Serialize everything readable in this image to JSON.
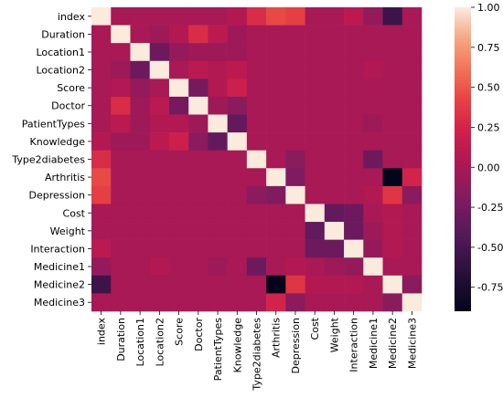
{
  "chart_data": {
    "type": "heatmap",
    "title": "",
    "xlabel": "",
    "ylabel": "",
    "labels": [
      "index",
      "Duration",
      "Location1",
      "Location2",
      "Score",
      "Doctor",
      "PatientTypes",
      "Knowledge",
      "Type2diabetes",
      "Arthritis",
      "Depression",
      "Cost",
      "Weight",
      "Interaction",
      "Medicine1",
      "Medicine2",
      "Medicine3"
    ],
    "colorbar": {
      "min": -0.9,
      "max": 1.0,
      "ticks": [
        "1.00",
        "0.75",
        "0.50",
        "0.25",
        "0.00",
        "-0.25",
        "-0.50",
        "-0.75"
      ],
      "tick_values": [
        1.0,
        0.75,
        0.5,
        0.25,
        0.0,
        -0.25,
        -0.5,
        -0.75
      ]
    },
    "values": [
      [
        1.0,
        0.0,
        0.0,
        0.0,
        0.0,
        0.0,
        0.0,
        0.05,
        0.3,
        0.45,
        0.4,
        0.0,
        0.0,
        0.1,
        -0.1,
        -0.55,
        0.0
      ],
      [
        0.0,
        1.0,
        0.0,
        -0.05,
        0.05,
        0.3,
        0.1,
        -0.05,
        0.0,
        0.0,
        0.0,
        0.0,
        0.0,
        0.0,
        0.0,
        0.0,
        0.0
      ],
      [
        0.0,
        0.0,
        1.0,
        -0.3,
        -0.1,
        -0.05,
        -0.05,
        -0.05,
        0.0,
        0.0,
        0.0,
        0.0,
        0.0,
        0.0,
        0.0,
        0.0,
        0.0
      ],
      [
        0.0,
        -0.05,
        -0.3,
        1.0,
        0.0,
        0.1,
        0.05,
        0.1,
        0.0,
        0.0,
        0.0,
        0.0,
        0.0,
        0.0,
        0.05,
        0.0,
        0.0
      ],
      [
        0.0,
        0.05,
        -0.1,
        0.0,
        1.0,
        -0.25,
        0.05,
        0.2,
        0.0,
        0.0,
        0.0,
        0.0,
        0.0,
        0.0,
        0.0,
        0.0,
        0.0
      ],
      [
        0.0,
        0.3,
        -0.05,
        0.1,
        -0.25,
        1.0,
        -0.05,
        -0.15,
        0.0,
        0.0,
        0.0,
        0.0,
        0.0,
        0.0,
        0.0,
        0.0,
        0.0
      ],
      [
        0.0,
        0.1,
        -0.05,
        0.05,
        0.05,
        -0.05,
        1.0,
        -0.35,
        0.0,
        0.0,
        0.0,
        0.0,
        0.0,
        0.0,
        -0.05,
        0.0,
        0.0
      ],
      [
        0.05,
        -0.05,
        -0.05,
        0.1,
        0.2,
        -0.15,
        -0.35,
        1.0,
        0.0,
        0.0,
        0.0,
        0.0,
        0.0,
        0.0,
        0.0,
        0.0,
        0.0
      ],
      [
        0.3,
        0.0,
        0.0,
        0.0,
        0.0,
        0.0,
        0.0,
        0.0,
        1.0,
        0.0,
        -0.15,
        0.0,
        0.0,
        0.0,
        -0.3,
        0.0,
        0.0
      ],
      [
        0.45,
        0.0,
        0.0,
        0.0,
        0.0,
        0.0,
        0.0,
        0.0,
        0.0,
        1.0,
        -0.2,
        0.0,
        0.0,
        0.0,
        0.0,
        -0.9,
        0.25
      ],
      [
        0.4,
        0.0,
        0.0,
        0.0,
        0.0,
        0.0,
        0.0,
        0.0,
        -0.15,
        -0.2,
        1.0,
        0.0,
        0.0,
        0.0,
        0.05,
        0.35,
        -0.15
      ],
      [
        0.0,
        0.0,
        0.0,
        0.0,
        0.0,
        0.0,
        0.0,
        0.0,
        0.0,
        0.0,
        0.0,
        1.0,
        -0.35,
        -0.3,
        0.0,
        0.05,
        0.0
      ],
      [
        0.0,
        0.0,
        0.0,
        0.0,
        0.0,
        0.0,
        0.0,
        0.0,
        0.0,
        0.0,
        0.0,
        -0.35,
        1.0,
        -0.3,
        -0.05,
        0.05,
        0.0
      ],
      [
        0.1,
        0.0,
        0.0,
        0.0,
        0.0,
        0.0,
        0.0,
        0.0,
        0.0,
        0.0,
        0.0,
        -0.3,
        -0.3,
        1.0,
        -0.1,
        0.05,
        0.0
      ],
      [
        -0.1,
        0.0,
        0.0,
        0.05,
        0.0,
        0.0,
        -0.05,
        0.0,
        -0.3,
        0.0,
        0.05,
        0.0,
        -0.05,
        -0.1,
        1.0,
        0.0,
        0.0
      ],
      [
        -0.55,
        0.0,
        0.0,
        0.0,
        0.0,
        0.0,
        0.0,
        0.0,
        0.0,
        -0.9,
        0.35,
        0.05,
        0.05,
        0.05,
        0.0,
        1.0,
        -0.15
      ],
      [
        0.0,
        0.0,
        0.0,
        0.0,
        0.0,
        0.0,
        0.0,
        0.0,
        0.0,
        0.25,
        -0.15,
        0.0,
        0.0,
        0.0,
        0.0,
        -0.15,
        1.0
      ]
    ]
  }
}
